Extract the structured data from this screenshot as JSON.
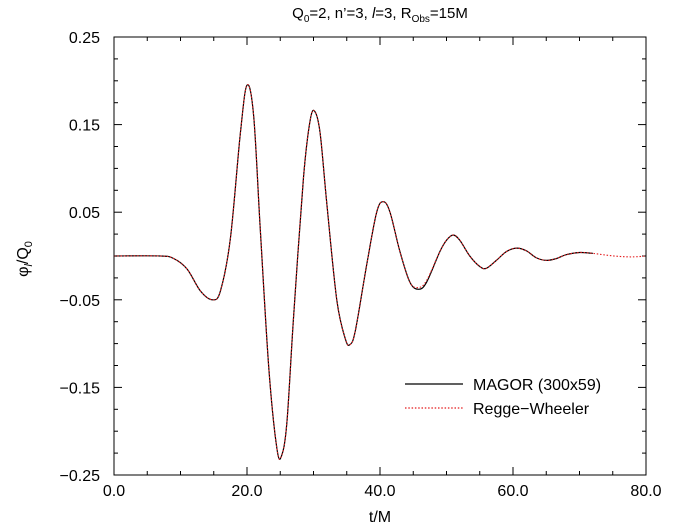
{
  "chart_data": {
    "type": "line",
    "title": {
      "parts": [
        {
          "t": "Q",
          "s": "n"
        },
        {
          "t": "0",
          "s": "sub"
        },
        {
          "t": "=2, n’=3, ",
          "s": "n"
        },
        {
          "t": "l",
          "s": "i"
        },
        {
          "t": "=3, R",
          "s": "n"
        },
        {
          "t": "Obs",
          "s": "sub"
        },
        {
          "t": "=15M",
          "s": "n"
        }
      ]
    },
    "xlabel": "t/M",
    "ylabel": {
      "parts": [
        {
          "t": "φ",
          "s": "n"
        },
        {
          "t": "l",
          "s": "sub-i"
        },
        {
          "t": "/Q",
          "s": "n"
        },
        {
          "t": "0",
          "s": "sub"
        }
      ]
    },
    "xlim": [
      0,
      80
    ],
    "ylim": [
      -0.25,
      0.25
    ],
    "xticks": [
      {
        "value": 0,
        "label": "0.0"
      },
      {
        "value": 20,
        "label": "20.0"
      },
      {
        "value": 40,
        "label": "40.0"
      },
      {
        "value": 60,
        "label": "60.0"
      },
      {
        "value": 80,
        "label": "80.0"
      }
    ],
    "yticks": [
      {
        "value": 0.25,
        "label": "0.25"
      },
      {
        "value": 0.15,
        "label": "0.15"
      },
      {
        "value": 0.05,
        "label": "0.05"
      },
      {
        "value": -0.05,
        "label": "−0.05"
      },
      {
        "value": -0.15,
        "label": "−0.15"
      },
      {
        "value": -0.25,
        "label": "−0.25"
      }
    ],
    "minor_x_step": 5,
    "minor_y_step": 0.025,
    "grid": false,
    "legend_position": "bottom-right",
    "series": [
      {
        "name": "MAGOR (300x59)",
        "color": "#000000",
        "style": "solid",
        "points": [
          [
            0,
            0
          ],
          [
            7,
            0
          ],
          [
            9,
            -0.003
          ],
          [
            11,
            -0.015
          ],
          [
            13,
            -0.04
          ],
          [
            14.8,
            -0.05
          ],
          [
            16,
            -0.04
          ],
          [
            17.5,
            0.02
          ],
          [
            19,
            0.14
          ],
          [
            20,
            0.195
          ],
          [
            21,
            0.16
          ],
          [
            22,
            0.03
          ],
          [
            23.3,
            -0.13
          ],
          [
            24.5,
            -0.22
          ],
          [
            25.2,
            -0.228
          ],
          [
            26,
            -0.19
          ],
          [
            27,
            -0.07
          ],
          [
            28.5,
            0.09
          ],
          [
            29.5,
            0.155
          ],
          [
            30.2,
            0.165
          ],
          [
            31,
            0.14
          ],
          [
            32,
            0.06
          ],
          [
            33.5,
            -0.05
          ],
          [
            34.8,
            -0.095
          ],
          [
            35.5,
            -0.101
          ],
          [
            36.3,
            -0.085
          ],
          [
            38,
            -0.01
          ],
          [
            39.5,
            0.05
          ],
          [
            40.5,
            0.062
          ],
          [
            41.5,
            0.05
          ],
          [
            43,
            0.005
          ],
          [
            44.5,
            -0.03
          ],
          [
            45.8,
            -0.038
          ],
          [
            47,
            -0.03
          ],
          [
            49,
            0.005
          ],
          [
            50,
            0.018
          ],
          [
            51,
            0.024
          ],
          [
            52,
            0.018
          ],
          [
            53.5,
            0
          ],
          [
            55,
            -0.012
          ],
          [
            56,
            -0.014
          ],
          [
            57.5,
            -0.005
          ],
          [
            59,
            0.005
          ],
          [
            60.5,
            0.009
          ],
          [
            62,
            0.006
          ],
          [
            63.5,
            -0.002
          ],
          [
            65,
            -0.005
          ],
          [
            66.5,
            -0.003
          ],
          [
            68,
            0.0015
          ],
          [
            70,
            0.004
          ],
          [
            72,
            0.003
          ]
        ]
      },
      {
        "name": "Regge−Wheeler",
        "color": "#e41a1c",
        "style": "dotted",
        "points": [
          [
            0,
            0
          ],
          [
            7,
            0
          ],
          [
            9,
            -0.003
          ],
          [
            11,
            -0.015
          ],
          [
            13,
            -0.04
          ],
          [
            14.8,
            -0.05
          ],
          [
            16,
            -0.04
          ],
          [
            17.5,
            0.02
          ],
          [
            19,
            0.14
          ],
          [
            20,
            0.195
          ],
          [
            21,
            0.16
          ],
          [
            22,
            0.03
          ],
          [
            23.3,
            -0.13
          ],
          [
            24.5,
            -0.22
          ],
          [
            25.2,
            -0.228
          ],
          [
            26,
            -0.19
          ],
          [
            27,
            -0.07
          ],
          [
            28.5,
            0.09
          ],
          [
            29.5,
            0.155
          ],
          [
            30.2,
            0.165
          ],
          [
            31,
            0.14
          ],
          [
            32,
            0.06
          ],
          [
            33.5,
            -0.05
          ],
          [
            34.8,
            -0.095
          ],
          [
            35.5,
            -0.101
          ],
          [
            36.3,
            -0.085
          ],
          [
            38,
            -0.01
          ],
          [
            39.5,
            0.05
          ],
          [
            40.5,
            0.062
          ],
          [
            41.5,
            0.05
          ],
          [
            43,
            0.005
          ],
          [
            44.5,
            -0.03
          ],
          [
            45.8,
            -0.036
          ],
          [
            47,
            -0.028
          ],
          [
            49,
            0.005
          ],
          [
            50,
            0.018
          ],
          [
            51,
            0.024
          ],
          [
            52,
            0.018
          ],
          [
            53.5,
            0
          ],
          [
            55,
            -0.012
          ],
          [
            56,
            -0.014
          ],
          [
            57.5,
            -0.005
          ],
          [
            59,
            0.005
          ],
          [
            60.5,
            0.009
          ],
          [
            62,
            0.006
          ],
          [
            63.5,
            -0.002
          ],
          [
            65,
            -0.005
          ],
          [
            66.5,
            -0.003
          ],
          [
            68,
            0.0015
          ],
          [
            70,
            0.004
          ],
          [
            72,
            0.003
          ],
          [
            74,
            0.001
          ],
          [
            76,
            -0.0005
          ],
          [
            78,
            -0.001
          ],
          [
            80,
            0
          ]
        ]
      }
    ]
  }
}
